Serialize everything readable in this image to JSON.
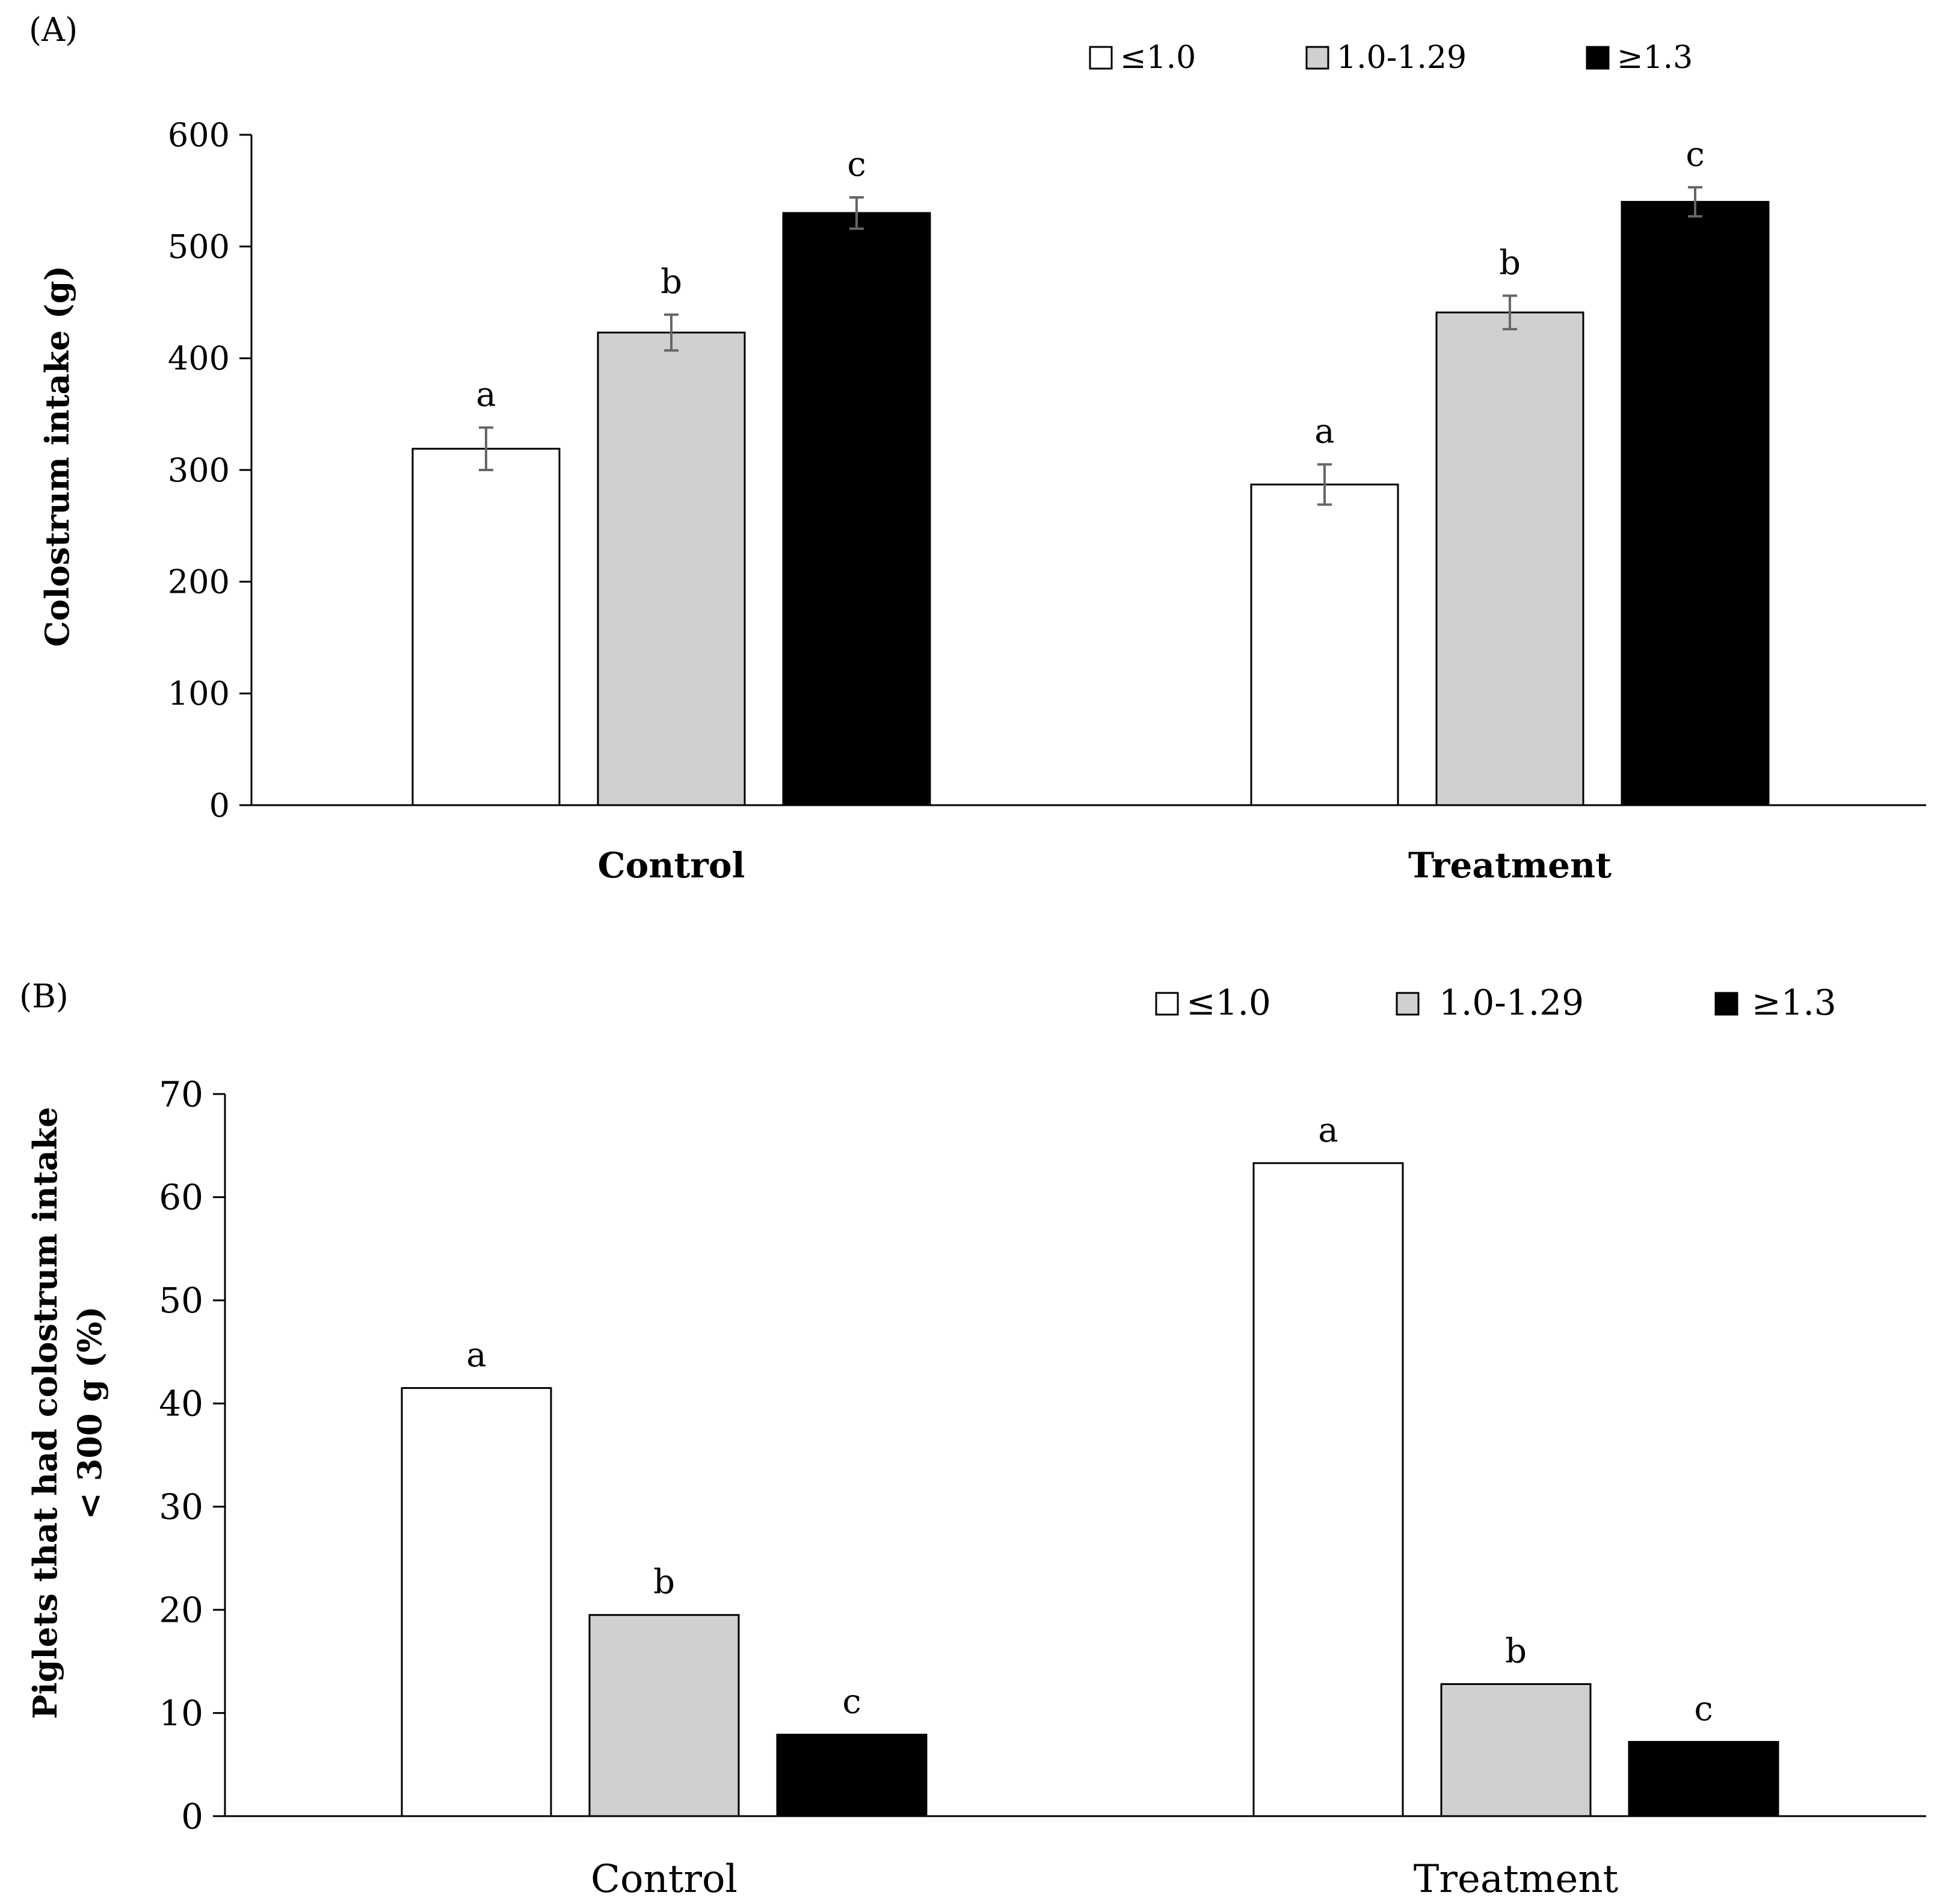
{
  "chart_data": [
    {
      "panel_label": "(A)",
      "type": "bar",
      "categories": [
        "Control",
        "Treatment"
      ],
      "category_bold": true,
      "series": [
        {
          "name": "≤1.0",
          "color": "#ffffff",
          "values": [
            319,
            287
          ],
          "errors": [
            19,
            18
          ],
          "letters": [
            "a",
            "a"
          ]
        },
        {
          "name": "1.0-1.29",
          "color": "#d0d0d0",
          "values": [
            423,
            441
          ],
          "errors": [
            16,
            15
          ],
          "letters": [
            "b",
            "b"
          ]
        },
        {
          "name": "≥1.3",
          "color": "#000000",
          "values": [
            530,
            540
          ],
          "errors": [
            14,
            13
          ],
          "letters": [
            "c",
            "c"
          ]
        }
      ],
      "ylabel": "Colostrum intake (g)",
      "ylabel_lines": [
        "Colostrum intake (g)"
      ],
      "xlabel": "",
      "ylim": [
        0,
        600
      ],
      "yticks": [
        "0",
        "100",
        "200",
        "300",
        "400",
        "500",
        "600"
      ],
      "grid": false,
      "legend": "top-right",
      "error_bars": true
    },
    {
      "panel_label": "(B)",
      "type": "bar",
      "categories": [
        "Control",
        "Treatment"
      ],
      "category_bold": false,
      "series": [
        {
          "name": "≤1.0",
          "color": "#ffffff",
          "values": [
            41.5,
            63.3
          ],
          "letters": [
            "a",
            "a"
          ]
        },
        {
          "name": "1.0-1.29",
          "color": "#d0d0d0",
          "values": [
            19.5,
            12.8
          ],
          "letters": [
            "b",
            "b"
          ]
        },
        {
          "name": "≥1.3",
          "color": "#000000",
          "values": [
            7.9,
            7.2
          ],
          "letters": [
            "c",
            "c"
          ]
        }
      ],
      "ylabel": "Piglets that had colostrum intake < 300 g (%)",
      "ylabel_lines": [
        "Piglets that had colostrum intake",
        "< 300 g (%)"
      ],
      "xlabel": "",
      "ylim": [
        0,
        70
      ],
      "yticks": [
        "0",
        "10",
        "20",
        "30",
        "40",
        "50",
        "60",
        "70"
      ],
      "grid": false,
      "legend": "top-right",
      "error_bars": false
    }
  ]
}
